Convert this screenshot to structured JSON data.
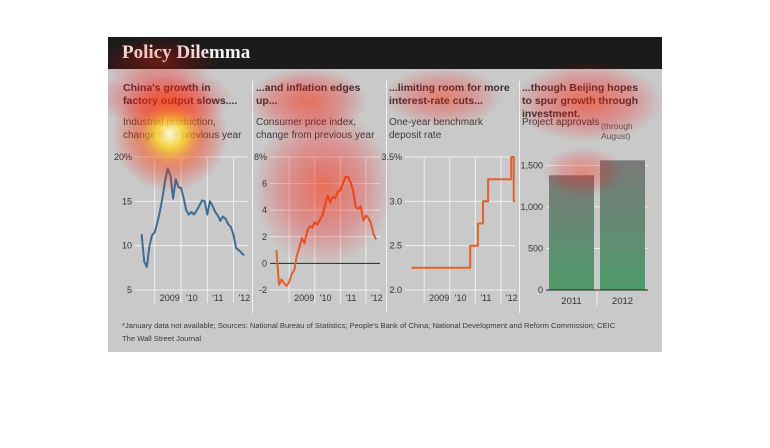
{
  "header": {
    "title": "Policy Dilemma"
  },
  "colors": {
    "header_bg": "#1b1b1b",
    "panel_bg": "#c9c9c9",
    "blue": "#3f6c91",
    "orange": "#e0622c",
    "green": "#4e9a6b",
    "grid": "#efefef"
  },
  "panels": [
    {
      "headline": "China's growth in factory output slows....",
      "subtitle": "Industrial production, change from previous year"
    },
    {
      "headline": "...and inflation edges up...",
      "subtitle": "Consumer price index, change from previous year"
    },
    {
      "headline": "...limiting room for more interest-rate cuts...",
      "subtitle": "One-year benchmark deposit rate"
    },
    {
      "headline": "...though Beijing hopes to spur growth through investment.",
      "subtitle": "Project approvals",
      "subtitle2": "(through August)"
    }
  ],
  "footer": {
    "note": "*January data not available; Sources: National Bureau of Statistics; People's Bank of China; National Development and Reform Commission; CEIC",
    "credit": "The Wall Street Journal"
  },
  "chart_data": [
    {
      "type": "line",
      "title": "China's growth in factory output slows....",
      "subtitle": "Industrial production, change from previous year",
      "ylim": [
        5,
        20
      ],
      "yticks": [
        5,
        10,
        15,
        20
      ],
      "ytick_labels": [
        "5",
        "10",
        "15",
        "20%"
      ],
      "xlim": [
        2008.25,
        2012.55
      ],
      "xticks": [
        2009,
        2010,
        2011,
        2012
      ],
      "xtick_labels": [
        "2009",
        "'10",
        "'11",
        "'12"
      ],
      "grid": true,
      "series": [
        {
          "color": "#3f6c91",
          "x": [
            2008.5,
            2008.6,
            2008.7,
            2008.8,
            2008.9,
            2009.0,
            2009.1,
            2009.2,
            2009.3,
            2009.4,
            2009.5,
            2009.6,
            2009.7,
            2009.8,
            2009.9,
            2010.0,
            2010.1,
            2010.2,
            2010.3,
            2010.4,
            2010.5,
            2010.6,
            2010.7,
            2010.8,
            2010.9,
            2011.0,
            2011.1,
            2011.2,
            2011.3,
            2011.4,
            2011.5,
            2011.6,
            2011.7,
            2011.8,
            2011.9,
            2012.0,
            2012.1,
            2012.2,
            2012.3,
            2012.4
          ],
          "y": [
            11.3,
            8.2,
            7.6,
            10.0,
            11.2,
            11.5,
            12.6,
            13.9,
            15.5,
            17.4,
            18.7,
            17.9,
            15.3,
            17.5,
            16.6,
            16.5,
            15.4,
            14.0,
            13.5,
            13.8,
            13.5,
            14.0,
            14.5,
            15.1,
            15.0,
            13.5,
            15.0,
            14.5,
            13.8,
            13.4,
            12.8,
            13.3,
            13.0,
            12.4,
            12.1,
            11.2,
            9.7,
            9.5,
            9.2,
            8.9
          ]
        }
      ]
    },
    {
      "type": "line",
      "title": "...and inflation edges up...",
      "subtitle": "Consumer price index, change from previous year",
      "ylim": [
        -2,
        8
      ],
      "yticks": [
        -2,
        0,
        2,
        4,
        6,
        8
      ],
      "ytick_labels": [
        "-2",
        "0",
        "2",
        "4",
        "6",
        "8%"
      ],
      "xlim": [
        2008.25,
        2012.55
      ],
      "xticks": [
        2009,
        2010,
        2011,
        2012
      ],
      "xtick_labels": [
        "2009",
        "'10",
        "'11",
        "'12"
      ],
      "grid": true,
      "zero_line": true,
      "series": [
        {
          "color": "#e0622c",
          "x": [
            2008.5,
            2008.6,
            2008.7,
            2008.8,
            2008.9,
            2009.0,
            2009.1,
            2009.2,
            2009.3,
            2009.4,
            2009.5,
            2009.6,
            2009.7,
            2009.8,
            2009.9,
            2010.0,
            2010.1,
            2010.2,
            2010.3,
            2010.4,
            2010.5,
            2010.6,
            2010.7,
            2010.8,
            2010.9,
            2011.0,
            2011.1,
            2011.2,
            2011.3,
            2011.4,
            2011.5,
            2011.6,
            2011.7,
            2011.8,
            2011.9,
            2012.0,
            2012.1,
            2012.2,
            2012.3,
            2012.4
          ],
          "y": [
            1.0,
            -1.6,
            -1.2,
            -1.5,
            -1.7,
            -1.4,
            -0.8,
            -0.5,
            0.6,
            1.2,
            1.9,
            1.5,
            2.4,
            2.8,
            2.7,
            3.1,
            2.9,
            3.3,
            3.6,
            4.4,
            5.1,
            4.6,
            5.0,
            4.9,
            5.4,
            5.5,
            6.0,
            6.5,
            6.5,
            6.1,
            5.5,
            4.2,
            4.1,
            4.3,
            3.2,
            3.6,
            3.4,
            3.0,
            2.2,
            1.8
          ]
        }
      ]
    },
    {
      "type": "line",
      "title": "...limiting room for more interest-rate cuts...",
      "subtitle": "One-year benchmark deposit rate",
      "ylim": [
        2.0,
        3.5
      ],
      "yticks": [
        2.0,
        2.5,
        3.0,
        3.5
      ],
      "ytick_labels": [
        "2.0",
        "2.5",
        "3.0",
        "3.5%"
      ],
      "xlim": [
        2008.25,
        2012.55
      ],
      "xticks": [
        2009,
        2010,
        2011,
        2012
      ],
      "xtick_labels": [
        "2009",
        "'10",
        "'11",
        "'12"
      ],
      "grid": true,
      "series": [
        {
          "color": "#e0622c",
          "step": true,
          "x": [
            2008.5,
            2010.8,
            2011.1,
            2011.3,
            2011.5,
            2012.4,
            2012.5
          ],
          "y": [
            2.25,
            2.5,
            2.75,
            3.0,
            3.25,
            3.5,
            3.0
          ]
        }
      ]
    },
    {
      "type": "bar",
      "title": "...though Beijing hopes to spur growth through investment.",
      "subtitle": "Project approvals",
      "categories": [
        "2011",
        "2012"
      ],
      "values": [
        1380,
        1560
      ],
      "ylim": [
        0,
        1600
      ],
      "yticks": [
        0,
        500,
        1000,
        1500
      ],
      "ytick_labels": [
        "0",
        "500",
        "1,000",
        "1,500"
      ],
      "grid": true
    }
  ]
}
